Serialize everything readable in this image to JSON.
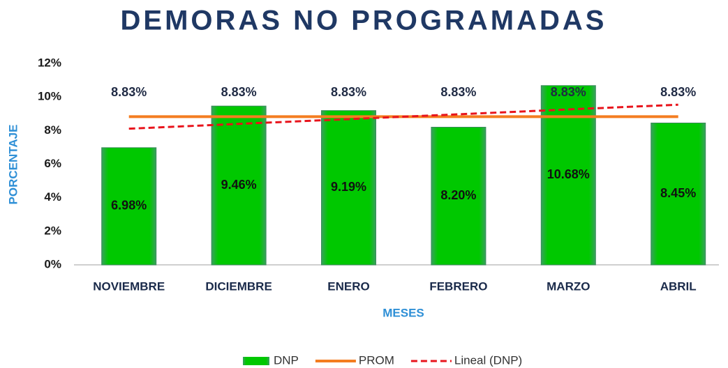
{
  "chart_data": {
    "type": "bar",
    "title": "DEMORAS NO PROGRAMADAS",
    "x_label": "MESES",
    "y_label": "PORCENTAJE",
    "categories": [
      "NOVIEMBRE",
      "DICIEMBRE",
      "ENERO",
      "FEBRERO",
      "MARZO",
      "ABRIL"
    ],
    "series": [
      {
        "name": "DNP",
        "type": "bar",
        "color": "#00c400",
        "values": [
          6.98,
          9.46,
          9.19,
          8.2,
          10.68,
          8.45
        ],
        "value_labels": [
          "6.98%",
          "9.46%",
          "9.19%",
          "8.20%",
          "10.68%",
          "8.45%"
        ]
      },
      {
        "name": "PROM",
        "type": "line",
        "color": "#f47d20",
        "values": [
          8.83,
          8.83,
          8.83,
          8.83,
          8.83,
          8.83
        ],
        "value_labels": [
          "8.83%",
          "8.83%",
          "8.83%",
          "8.83%",
          "8.83%",
          "8.83%"
        ]
      },
      {
        "name": "Lineal (DNP)",
        "type": "line",
        "color": "#e8141c",
        "dashed": true,
        "values": [
          8.11,
          8.4,
          8.68,
          8.97,
          9.26,
          9.54
        ]
      }
    ],
    "ylim": [
      0,
      12
    ],
    "yticks": [
      {
        "value": 0,
        "label": "0%"
      },
      {
        "value": 2,
        "label": "2%"
      },
      {
        "value": 4,
        "label": "4%"
      },
      {
        "value": 6,
        "label": "6%"
      },
      {
        "value": 8,
        "label": "8%"
      },
      {
        "value": 10,
        "label": "10%"
      },
      {
        "value": 12,
        "label": "12%"
      }
    ],
    "grid": false,
    "legend": "bottom"
  }
}
